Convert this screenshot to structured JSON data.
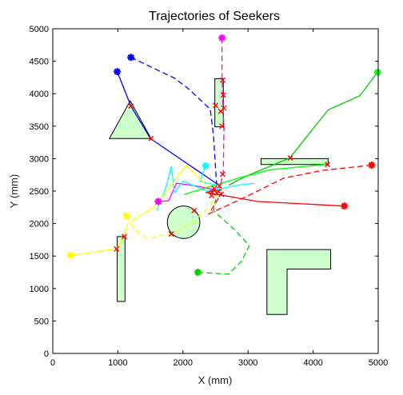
{
  "chart_data": {
    "type": "line",
    "title": "Trajectories of Seekers",
    "xlabel": "X (mm)",
    "ylabel": "Y (mm)",
    "xlim": [
      0,
      5000
    ],
    "ylim": [
      0,
      5000
    ],
    "xticks": [
      0,
      1000,
      2000,
      3000,
      4000,
      5000
    ],
    "yticks": [
      0,
      500,
      1000,
      1500,
      2000,
      2500,
      3000,
      3500,
      4000,
      4500,
      5000
    ],
    "grid": false,
    "obstacles": [
      {
        "shape": "polygon",
        "points": [
          [
            870,
            3310
          ],
          [
            1190,
            3890
          ],
          [
            1510,
            3310
          ]
        ]
      },
      {
        "shape": "polygon",
        "points": [
          [
            3200,
            2910
          ],
          [
            4230,
            2910
          ],
          [
            4230,
            3000
          ],
          [
            3200,
            3000
          ]
        ]
      },
      {
        "shape": "polygon",
        "points": [
          [
            2490,
            3490
          ],
          [
            2620,
            3490
          ],
          [
            2620,
            4230
          ],
          [
            2490,
            4230
          ]
        ]
      },
      {
        "shape": "polygon",
        "points": [
          [
            990,
            800
          ],
          [
            1110,
            800
          ],
          [
            1110,
            1800
          ],
          [
            990,
            1800
          ]
        ]
      },
      {
        "shape": "polygon",
        "points": [
          [
            3290,
            600
          ],
          [
            3600,
            600
          ],
          [
            3600,
            1300
          ],
          [
            4270,
            1300
          ],
          [
            4270,
            1600
          ],
          [
            3290,
            1600
          ]
        ]
      },
      {
        "shape": "circle",
        "center": [
          2010,
          2020
        ],
        "radius": 250
      }
    ],
    "series": [
      {
        "color": "#0000ff",
        "dash": false,
        "points": [
          [
            990,
            4340
          ],
          [
            1200,
            3810
          ],
          [
            1500,
            3310
          ],
          [
            2540,
            2600
          ]
        ]
      },
      {
        "color": "#0000ff",
        "dash": true,
        "points": [
          [
            1200,
            4560
          ],
          [
            1870,
            4240
          ],
          [
            2080,
            4080
          ],
          [
            2420,
            3760
          ],
          [
            2470,
            3350
          ],
          [
            2520,
            2550
          ]
        ]
      },
      {
        "color": "#ff00ff",
        "dash": true,
        "points": [
          [
            2600,
            4860
          ],
          [
            2600,
            4350
          ],
          [
            2610,
            3900
          ],
          [
            2630,
            3500
          ],
          [
            2620,
            2800
          ],
          [
            2560,
            2500
          ]
        ]
      },
      {
        "color": "#ff00ff",
        "dash": false,
        "points": [
          [
            1620,
            2340
          ],
          [
            1780,
            2350
          ],
          [
            1900,
            2620
          ],
          [
            2200,
            2580
          ],
          [
            2500,
            2520
          ]
        ]
      },
      {
        "color": "#00ffff",
        "dash": false,
        "points": [
          [
            2350,
            2890
          ],
          [
            2260,
            2650
          ],
          [
            2480,
            2600
          ]
        ]
      },
      {
        "color": "#00ffff",
        "dash": false,
        "points": [
          [
            1600,
            2200
          ],
          [
            1740,
            2560
          ],
          [
            1820,
            2880
          ],
          [
            1870,
            2480
          ],
          [
            2000,
            2650
          ],
          [
            2380,
            2500
          ],
          [
            2900,
            2600
          ],
          [
            3100,
            2620
          ]
        ]
      },
      {
        "color": "#ffff00",
        "dash": false,
        "points": [
          [
            270,
            1510
          ],
          [
            980,
            1610
          ],
          [
            1100,
            1800
          ],
          [
            1150,
            2000
          ],
          [
            1580,
            2270
          ],
          [
            2050,
            2900
          ],
          [
            2370,
            2580
          ]
        ]
      },
      {
        "color": "#ffff00",
        "dash": true,
        "points": [
          [
            1130,
            2120
          ],
          [
            1300,
            1860
          ],
          [
            1470,
            1760
          ],
          [
            1620,
            1820
          ],
          [
            1830,
            1840
          ],
          [
            2120,
            2000
          ],
          [
            2380,
            2230
          ],
          [
            2600,
            2550
          ]
        ]
      },
      {
        "color": "#00cc00",
        "dash": false,
        "points": [
          [
            4990,
            4330
          ],
          [
            4720,
            3970
          ],
          [
            4230,
            3750
          ],
          [
            3640,
            3010
          ],
          [
            2950,
            2720
          ],
          [
            2700,
            2590
          ]
        ]
      },
      {
        "color": "#00ff00",
        "dash": false,
        "points": [
          [
            4200,
            2910
          ],
          [
            3350,
            2830
          ],
          [
            2850,
            2700
          ],
          [
            2020,
            2450
          ]
        ]
      },
      {
        "color": "#00cc00",
        "dash": true,
        "points": [
          [
            2230,
            1250
          ],
          [
            2700,
            1220
          ],
          [
            2900,
            1420
          ],
          [
            3020,
            1660
          ],
          [
            2800,
            1900
          ],
          [
            2470,
            2200
          ],
          [
            2530,
            2500
          ]
        ]
      },
      {
        "color": "#ff0000",
        "dash": false,
        "points": [
          [
            4480,
            2270
          ],
          [
            3150,
            2340
          ],
          [
            2350,
            2480
          ],
          [
            2600,
            2520
          ]
        ]
      },
      {
        "color": "#ff0000",
        "dash": true,
        "points": [
          [
            4900,
            2900
          ],
          [
            4150,
            2820
          ],
          [
            3550,
            2700
          ],
          [
            2900,
            2380
          ],
          [
            2400,
            2150
          ],
          [
            2600,
            2480
          ]
        ]
      }
    ],
    "start_markers": [
      {
        "color": "#0000ff",
        "point": [
          990,
          4340
        ]
      },
      {
        "color": "#0000ff",
        "point": [
          1200,
          4560
        ]
      },
      {
        "color": "#ff00ff",
        "point": [
          2600,
          4860
        ]
      },
      {
        "color": "#ff00ff",
        "point": [
          1620,
          2340
        ]
      },
      {
        "color": "#00ffff",
        "point": [
          2350,
          2890
        ]
      },
      {
        "color": "#ffff00",
        "point": [
          270,
          1510
        ]
      },
      {
        "color": "#ffff00",
        "point": [
          1130,
          2120
        ]
      },
      {
        "color": "#00ff00",
        "point": [
          4990,
          4330
        ]
      },
      {
        "color": "#00cc00",
        "point": [
          2230,
          1250
        ]
      },
      {
        "color": "#ff0000",
        "point": [
          4900,
          2900
        ]
      },
      {
        "color": "#ff0000",
        "point": [
          4480,
          2270
        ]
      }
    ],
    "cross_markers": [
      [
        1200,
        3810
      ],
      [
        1510,
        3310
      ],
      [
        2500,
        3820
      ],
      [
        2580,
        3730
      ],
      [
        2600,
        3500
      ],
      [
        2610,
        4210
      ],
      [
        980,
        1610
      ],
      [
        1100,
        1800
      ],
      [
        1820,
        1840
      ],
      [
        2170,
        2200
      ],
      [
        2440,
        2430
      ],
      [
        3650,
        3010
      ],
      [
        4220,
        2910
      ],
      [
        2610,
        2760
      ],
      [
        2520,
        2470
      ],
      [
        2590,
        2450
      ],
      [
        2480,
        2540
      ],
      [
        2560,
        2580
      ],
      [
        2450,
        2480
      ],
      [
        2630,
        3780
      ],
      [
        2620,
        3980
      ]
    ]
  }
}
